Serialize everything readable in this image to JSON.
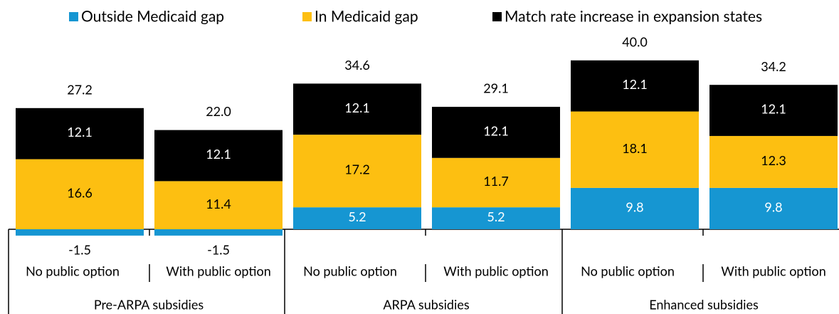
{
  "chart_data": {
    "type": "stacked_bar",
    "groups": [
      "Pre-ARPA subsidies",
      "ARPA subsidies",
      "Enhanced subsidies"
    ],
    "categories": [
      "No public option",
      "With public option",
      "No public option",
      "With public option",
      "No public option",
      "With public option"
    ],
    "series": [
      {
        "name": "Outside Medicaid gap",
        "color": "#1696d2",
        "label_color": "#ffffff",
        "values": [
          -1.5,
          -1.5,
          5.2,
          5.2,
          9.8,
          9.8
        ]
      },
      {
        "name": "In Medicaid gap",
        "color": "#fdbf11",
        "label_color": "#000000",
        "values": [
          16.6,
          11.4,
          17.2,
          11.7,
          18.1,
          12.3
        ]
      },
      {
        "name": "Match rate increase in expansion states",
        "color": "#000000",
        "label_color": "#ffffff",
        "values": [
          12.1,
          12.1,
          12.1,
          12.1,
          12.1,
          12.1
        ]
      }
    ],
    "totals": [
      27.2,
      22,
      34.6,
      29.1,
      40,
      34.2
    ],
    "total_labels": [
      "27.2",
      "22.0",
      "34.6",
      "29.1",
      "40.0",
      "34.2"
    ]
  }
}
